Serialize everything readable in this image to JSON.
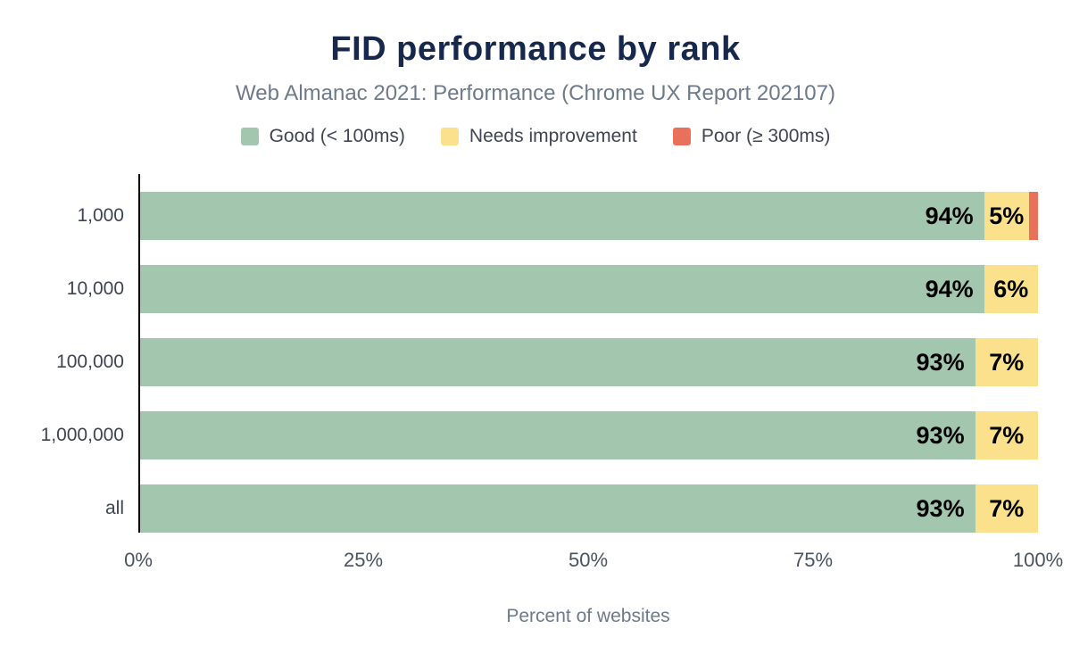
{
  "header": {
    "title": "FID performance by rank",
    "subtitle": "Web Almanac 2021: Performance (Chrome UX Report 202107)"
  },
  "chart_data": {
    "type": "bar",
    "orientation": "horizontal",
    "stacked": true,
    "title": "FID performance by rank",
    "subtitle": "Web Almanac 2021: Performance (Chrome UX Report 202107)",
    "categories": [
      "1,000",
      "10,000",
      "100,000",
      "1,000,000",
      "all"
    ],
    "series": [
      {
        "name": "Good (< 100ms)",
        "slug": "good",
        "color": "#a3c7ae",
        "values": [
          94,
          94,
          93,
          93,
          93
        ]
      },
      {
        "name": "Needs improvement",
        "slug": "needs-improvement",
        "color": "#fbe18b",
        "values": [
          5,
          6,
          7,
          7,
          7
        ]
      },
      {
        "name": "Poor (≥ 300ms)",
        "slug": "poor",
        "color": "#e9705a",
        "values": [
          1,
          0,
          0,
          0,
          0
        ]
      }
    ],
    "value_labels": [
      [
        "94%",
        "5%",
        ""
      ],
      [
        "94%",
        "6%",
        ""
      ],
      [
        "93%",
        "7%",
        ""
      ],
      [
        "93%",
        "7%",
        ""
      ],
      [
        "93%",
        "7%",
        ""
      ]
    ],
    "xticks": [
      "0%",
      "25%",
      "50%",
      "75%",
      "100%"
    ],
    "xtick_positions": [
      0,
      25,
      50,
      75,
      100
    ],
    "xlim": [
      0,
      100
    ],
    "xlabel": "Percent of websites",
    "legend_position": "top",
    "grid": false
  }
}
